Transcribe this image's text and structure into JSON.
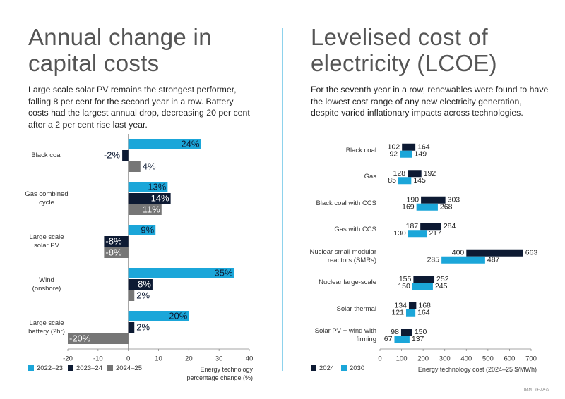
{
  "chart_data": [
    {
      "type": "bar",
      "orientation": "horizontal",
      "title": "Annual change in capital costs",
      "subtitle": "Large scale solar PV remains the strongest performer, falling 8 per cent for the second year in a row. Battery costs had the largest annual drop, decreasing 20 per cent after a 2 per cent rise last year.",
      "categories": [
        "Black coal",
        "Gas combined cycle",
        "Large scale solar PV",
        "Wind (onshore)",
        "Large scale battery (2hr)"
      ],
      "series": [
        {
          "name": "2022–23",
          "color": "#1ba6d9",
          "values": [
            24,
            13,
            9,
            35,
            20
          ],
          "value_labels": [
            "24%",
            "13%",
            "9%",
            "35%",
            "20%"
          ]
        },
        {
          "name": "2023–24",
          "color": "#0d1a33",
          "values": [
            -2,
            14,
            -8,
            8,
            2
          ],
          "value_labels": [
            "-2%",
            "14%",
            "-8%",
            "8%",
            "2%"
          ]
        },
        {
          "name": "2024–25",
          "color": "#767676",
          "values": [
            4,
            11,
            -8,
            2,
            -20
          ],
          "value_labels": [
            "4%",
            "11%",
            "-8%",
            "2%",
            "-20%"
          ]
        }
      ],
      "xlim": [
        -20,
        40
      ],
      "xticks": [
        -20,
        -10,
        0,
        10,
        20,
        30,
        40
      ],
      "xlabel": "Energy technology percentage change (%)"
    },
    {
      "type": "range_bar",
      "orientation": "horizontal",
      "title": "Levelised cost of electricity (LCOE)",
      "subtitle": "For the seventh year in a row, renewables were found to have the lowest cost range of any new electricity generation, despite varied inflationary impacts across technologies.",
      "categories": [
        "Black coal",
        "Gas",
        "Black coal with CCS",
        "Gas with CCS",
        "Nuclear small modular reactors (SMRs)",
        "Nuclear large-scale",
        "Solar thermal",
        "Solar PV + wind with firming"
      ],
      "series": [
        {
          "name": "2024",
          "color": "#0d1a33",
          "low": [
            102,
            128,
            190,
            187,
            400,
            155,
            134,
            98
          ],
          "high": [
            164,
            192,
            303,
            284,
            663,
            252,
            168,
            150
          ]
        },
        {
          "name": "2030",
          "color": "#1ba6d9",
          "low": [
            92,
            85,
            169,
            130,
            285,
            150,
            121,
            67
          ],
          "high": [
            149,
            145,
            268,
            217,
            487,
            245,
            164,
            137
          ]
        }
      ],
      "xlim": [
        0,
        700
      ],
      "xticks": [
        0,
        100,
        200,
        300,
        400,
        500,
        600,
        700
      ],
      "xlabel": "Energy technology cost (2024–25 $/MWh)"
    }
  ],
  "footer": "B&M | 24-00479"
}
